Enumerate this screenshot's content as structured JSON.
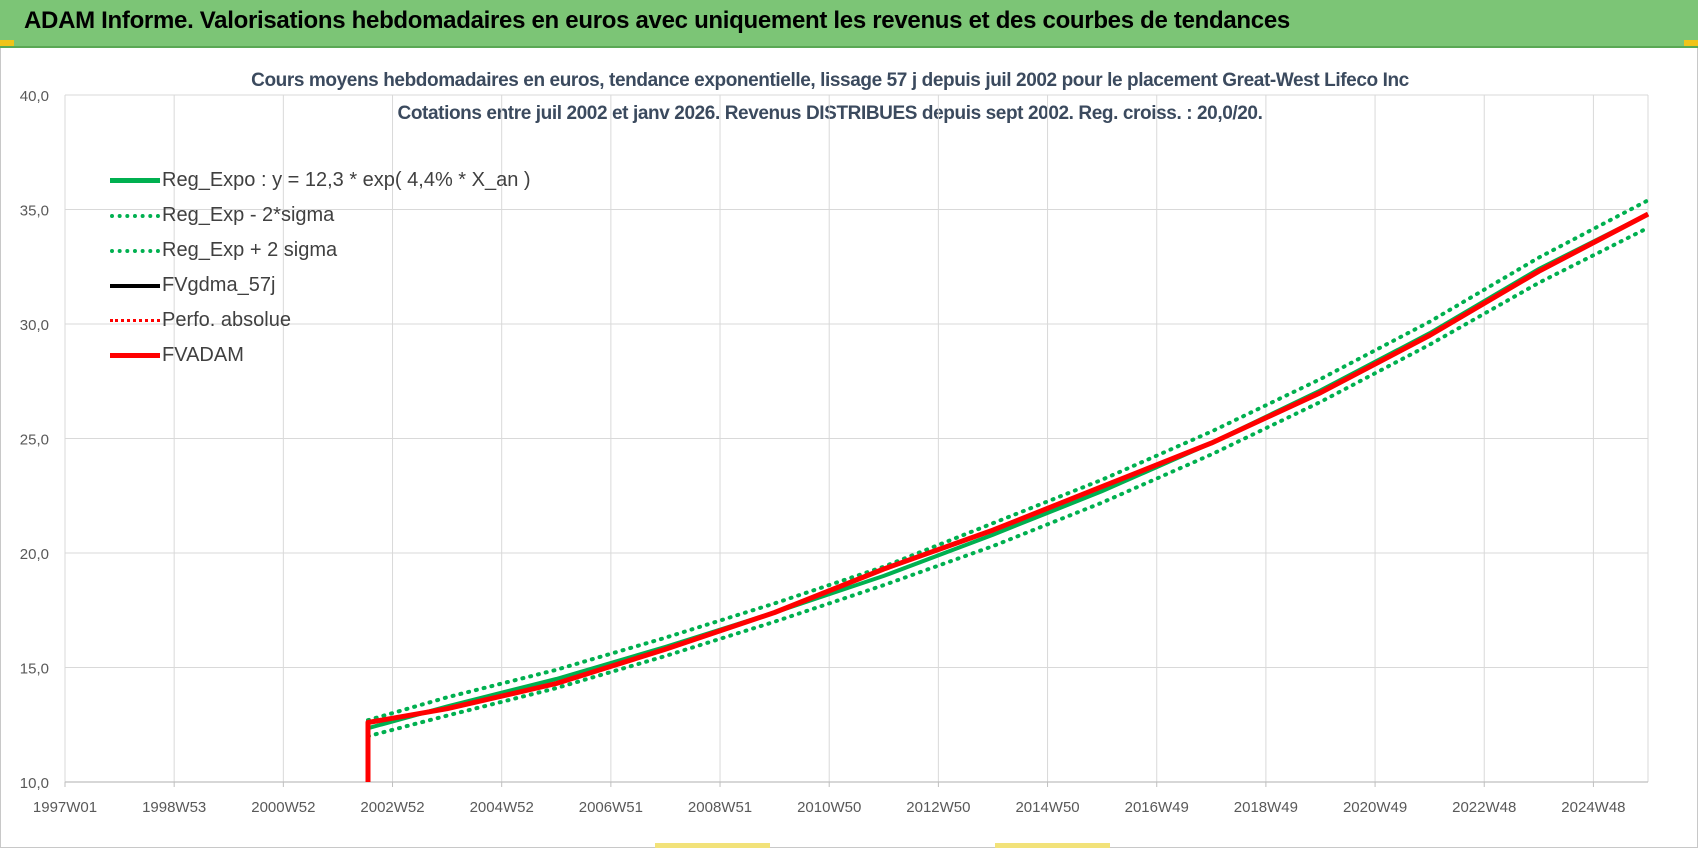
{
  "header": {
    "title": "ADAM Informe. Valorisations hebdomadaires en euros avec uniquement les revenus et des courbes de tendances"
  },
  "chart_data": {
    "type": "line",
    "title_line1": "Cours moyens hebdomadaires en euros, tendance exponentielle, lissage 57 j depuis juil 2002 pour le placement Great-West Lifeco Inc",
    "title_line2": "Cotations entre juil 2002 et janv 2026. Revenus DISTRIBUES depuis sept 2002. Reg. croiss. : 20,0/20.",
    "ylim": [
      10,
      40
    ],
    "y_ticks": [
      "10,0",
      "15,0",
      "20,0",
      "25,0",
      "30,0",
      "35,0",
      "40,0"
    ],
    "x_range": [
      1997.0,
      2026.0
    ],
    "x_ticks": [
      {
        "label": "1997W01",
        "x": 1997.0
      },
      {
        "label": "1998W53",
        "x": 1999.0
      },
      {
        "label": "2000W52",
        "x": 2001.0
      },
      {
        "label": "2002W52",
        "x": 2003.0
      },
      {
        "label": "2004W52",
        "x": 2005.0
      },
      {
        "label": "2006W51",
        "x": 2007.0
      },
      {
        "label": "2008W51",
        "x": 2009.0
      },
      {
        "label": "2010W50",
        "x": 2011.0
      },
      {
        "label": "2012W50",
        "x": 2013.0
      },
      {
        "label": "2014W50",
        "x": 2015.0
      },
      {
        "label": "2016W49",
        "x": 2017.0
      },
      {
        "label": "2018W49",
        "x": 2019.0
      },
      {
        "label": "2020W49",
        "x": 2021.0
      },
      {
        "label": "2022W48",
        "x": 2023.0
      },
      {
        "label": "2024W48",
        "x": 2025.0
      }
    ],
    "grid": true,
    "legend_position": "top-left",
    "series": [
      {
        "name": "Reg_Expo : y = 12,3 * exp( 4,4% *  X_an )",
        "color": "#00b050",
        "style": "solid",
        "x": [
          2002.55,
          2004,
          2006,
          2008,
          2010,
          2012,
          2014,
          2016,
          2018,
          2020,
          2022,
          2024,
          2026
        ],
        "y": [
          12.35,
          13.3,
          14.5,
          15.9,
          17.4,
          19.0,
          20.8,
          22.7,
          24.8,
          27.1,
          29.6,
          32.4,
          34.8
        ]
      },
      {
        "name": "Reg_Exp - 2*sigma",
        "color": "#00b050",
        "style": "dotted",
        "x": [
          2002.55,
          2004,
          2006,
          2008,
          2010,
          2012,
          2014,
          2016,
          2018,
          2020,
          2022,
          2024,
          2026
        ],
        "y": [
          12.0,
          12.9,
          14.1,
          15.5,
          17.0,
          18.6,
          20.3,
          22.2,
          24.3,
          26.6,
          29.1,
          31.8,
          34.2
        ]
      },
      {
        "name": "Reg_Exp + 2 sigma",
        "color": "#00b050",
        "style": "dotted",
        "x": [
          2002.55,
          2004,
          2006,
          2008,
          2010,
          2012,
          2014,
          2016,
          2018,
          2020,
          2022,
          2024,
          2026
        ],
        "y": [
          12.7,
          13.7,
          14.9,
          16.3,
          17.8,
          19.4,
          21.3,
          23.2,
          25.3,
          27.6,
          30.1,
          32.9,
          35.4
        ]
      },
      {
        "name": "FVgdma_57j",
        "color": "#000000",
        "style": "solid",
        "x": [
          2002.55,
          2004,
          2006,
          2008,
          2010,
          2012,
          2014,
          2016,
          2018,
          2020,
          2022,
          2024,
          2026
        ],
        "y": [
          12.6,
          13.2,
          14.3,
          15.8,
          17.4,
          19.3,
          21.0,
          22.9,
          24.8,
          27.0,
          29.5,
          32.3,
          34.8
        ]
      },
      {
        "name": "Perfo. absolue",
        "color": "#ff0000",
        "style": "dotted",
        "x": [
          2002.55,
          2004,
          2006,
          2008,
          2010,
          2012,
          2014,
          2016,
          2018,
          2020,
          2022,
          2024,
          2026
        ],
        "y": [
          12.6,
          13.2,
          14.3,
          15.8,
          17.4,
          19.3,
          21.0,
          22.9,
          24.8,
          27.0,
          29.5,
          32.3,
          34.8
        ]
      },
      {
        "name": "FVADAM",
        "color": "#ff0000",
        "style": "solid-thick",
        "x": [
          2002.55,
          2002.55,
          2004,
          2006,
          2008,
          2010,
          2012,
          2014,
          2016,
          2018,
          2020,
          2022,
          2024,
          2026
        ],
        "y": [
          10.0,
          12.6,
          13.2,
          14.3,
          15.8,
          17.4,
          19.3,
          21.0,
          22.9,
          24.8,
          27.0,
          29.5,
          32.3,
          34.8
        ]
      }
    ]
  }
}
